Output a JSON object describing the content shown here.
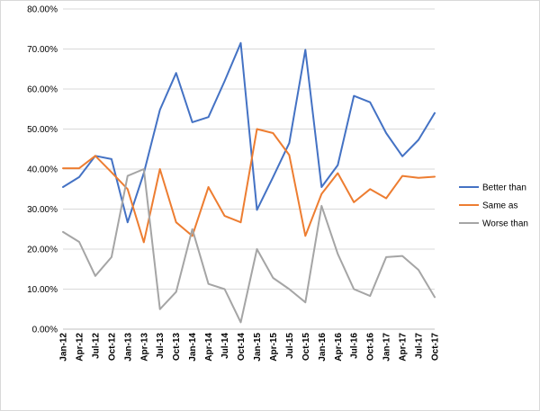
{
  "chart_data": {
    "type": "line",
    "title": "",
    "xlabel": "",
    "ylabel": "",
    "ylim": [
      0,
      0.8
    ],
    "y_ticks": [
      "0.00%",
      "10.00%",
      "20.00%",
      "30.00%",
      "40.00%",
      "50.00%",
      "60.00%",
      "70.00%",
      "80.00%"
    ],
    "grid": true,
    "legend_position": "right",
    "categories": [
      "Jan-12",
      "Apr-12",
      "Jul-12",
      "Oct-12",
      "Jan-13",
      "Apr-13",
      "Jul-13",
      "Oct-13",
      "Jan-14",
      "Apr-14",
      "Jul-14",
      "Oct-14",
      "Jan-15",
      "Apr-15",
      "Jul-15",
      "Oct-15",
      "Jan-16",
      "Apr-16",
      "Jul-16",
      "Oct-16",
      "Jan-17",
      "Apr-17",
      "Jul-17",
      "Oct-17"
    ],
    "series": [
      {
        "name": "Better than",
        "color": "#4472c4",
        "values": [
          0.355,
          0.38,
          0.433,
          0.425,
          0.267,
          0.39,
          0.548,
          0.64,
          0.517,
          0.53,
          0.62,
          0.715,
          0.298,
          0.38,
          0.465,
          0.698,
          0.355,
          0.41,
          0.583,
          0.567,
          0.49,
          0.432,
          0.473,
          0.54
        ]
      },
      {
        "name": "Same as",
        "color": "#ed7d31",
        "values": [
          0.402,
          0.402,
          0.433,
          0.392,
          0.35,
          0.217,
          0.4,
          0.267,
          0.233,
          0.355,
          0.283,
          0.267,
          0.5,
          0.49,
          0.435,
          0.233,
          0.338,
          0.39,
          0.317,
          0.35,
          0.327,
          0.383,
          0.378,
          0.381
        ]
      },
      {
        "name": "Worse than",
        "color": "#a5a5a5",
        "values": [
          0.243,
          0.218,
          0.133,
          0.18,
          0.383,
          0.4,
          0.05,
          0.093,
          0.25,
          0.113,
          0.1,
          0.017,
          0.2,
          0.128,
          0.1,
          0.067,
          0.308,
          0.188,
          0.1,
          0.083,
          0.18,
          0.183,
          0.148,
          0.08
        ]
      }
    ]
  }
}
